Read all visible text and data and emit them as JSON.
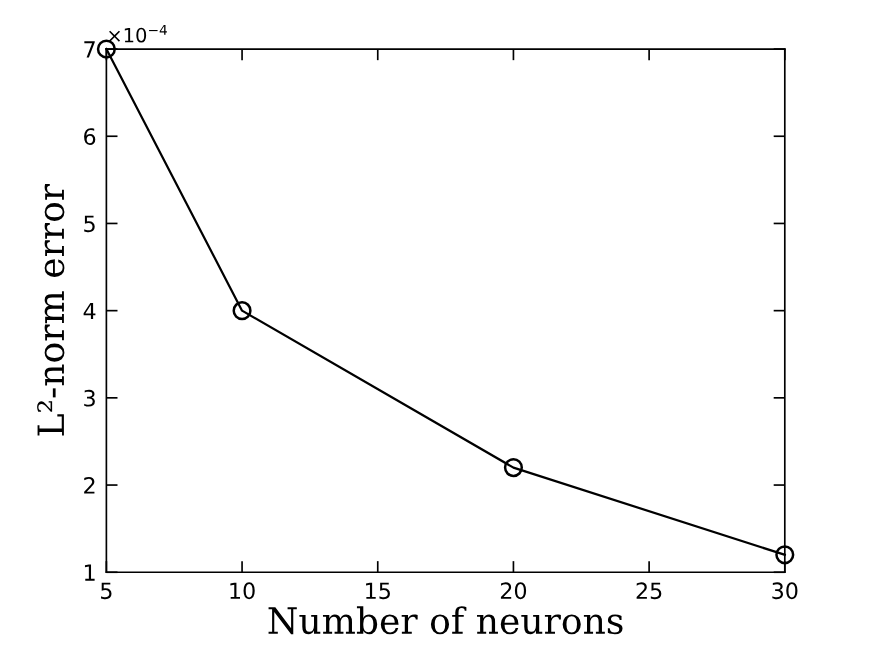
{
  "chart_data": {
    "type": "line",
    "xlabel": "Number of neurons",
    "ylabel": "L²-norm error",
    "x": [
      5,
      10,
      20,
      30
    ],
    "series": [
      {
        "color": "#000000",
        "values": [
          7,
          4,
          2.2,
          1.2
        ]
      }
    ],
    "xlim": [
      5,
      30
    ],
    "xticks": [
      5,
      10,
      15,
      20,
      25,
      30
    ],
    "ylim": [
      1,
      7
    ],
    "yticks": [
      1,
      2,
      3,
      4,
      5,
      6,
      7
    ],
    "annotations": [
      "×10$^{−4}$"
    ],
    "marker": "circle",
    "line_style": "solid",
    "grid": false,
    "legend": false
  }
}
